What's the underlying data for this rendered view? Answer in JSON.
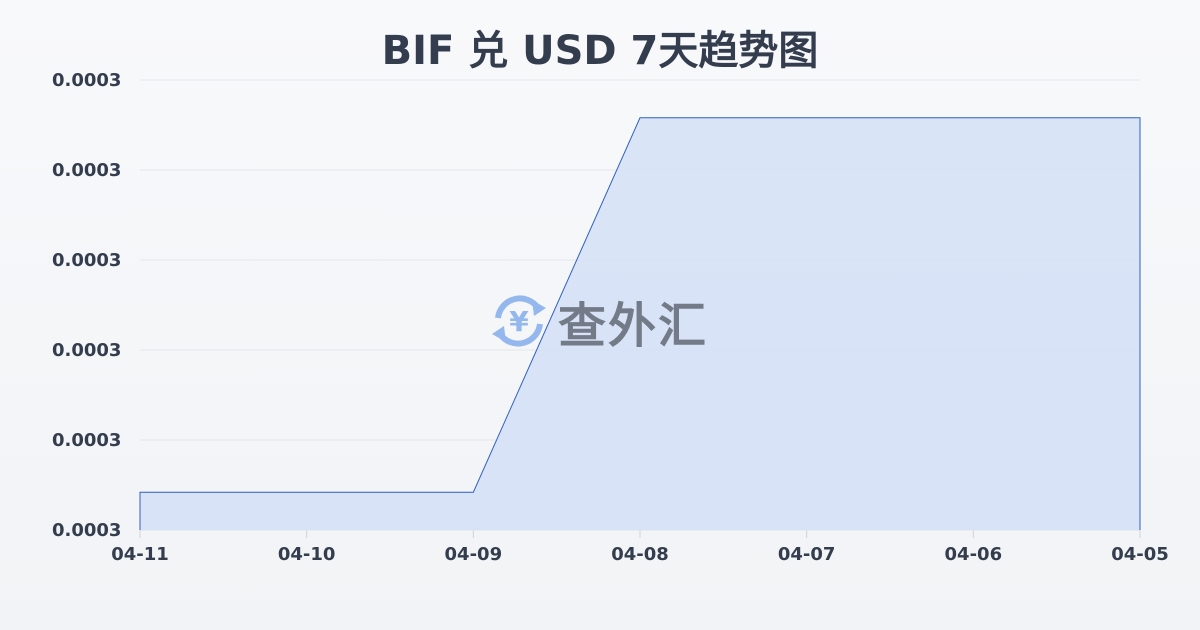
{
  "chart_data": {
    "type": "area",
    "title": "BIF 兑 USD 7天趋势图",
    "x": [
      "04-11",
      "04-10",
      "04-09",
      "04-08",
      "04-07",
      "04-06",
      "04-05"
    ],
    "values": [
      0.00030021,
      0.00030021,
      0.00030021,
      0.00030229,
      0.00030229,
      0.00030229,
      0.00030229
    ],
    "ylim": [
      0.0003,
      0.0003025
    ],
    "yticks": [
      0.0003,
      0.0003005,
      0.000301,
      0.0003015,
      0.000302,
      0.0003025
    ],
    "ytick_labels": [
      "0.0003",
      "0.0003",
      "0.0003",
      "0.0003",
      "0.0003",
      "0.0003"
    ],
    "grid": true,
    "colors": {
      "line": "#2f5fc4",
      "fill": "#d6e1f6",
      "grid": "#e3e6ea",
      "text": "#333d4d"
    }
  },
  "watermark": {
    "text": "查外汇",
    "icon": "yen-exchange-icon",
    "icon_color": "#8fb4ee"
  }
}
